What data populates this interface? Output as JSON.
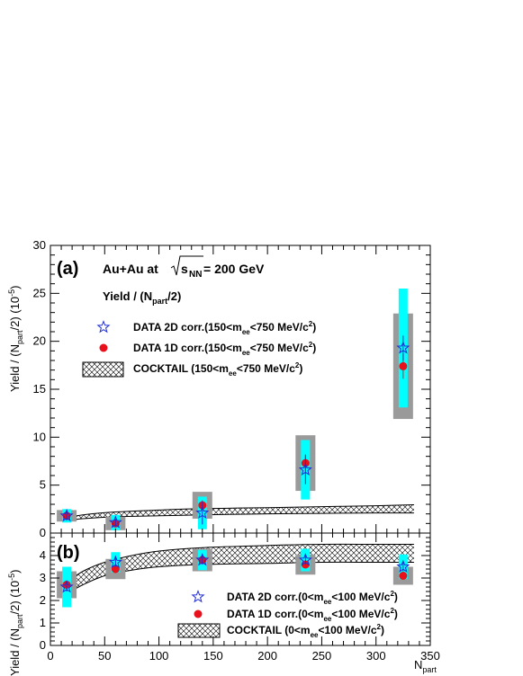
{
  "chart_data": [
    {
      "panel": "(a)",
      "type": "scatter",
      "title": "Au+Au at √sNN = 200 GeV",
      "title_parts": {
        "prefix": "Au+Au at ",
        "root": "s",
        "root_sub": "NN",
        "suffix": " = 200 GeV"
      },
      "subtitle": "Yield / (Npart/2)",
      "subtitle_parts": {
        "a": "Yield / (N",
        "sub": "part",
        "b": "/2)"
      },
      "ylabel": "Yield / (Npart/2) (10-5)",
      "ylim": [
        0,
        30
      ],
      "yticks": [
        0,
        5,
        10,
        15,
        20,
        25,
        30
      ],
      "x": [
        15,
        60,
        140,
        235,
        325
      ],
      "series": [
        {
          "name": "DATA 2D corr.(150<mee<750 MeV/c2)",
          "legend_parts": {
            "a": "DATA 2D corr.(150<m",
            "sub": "ee",
            "b": "<750 MeV/c",
            "sup": "2",
            "c": ")"
          },
          "marker": "open-star",
          "color": "#1f2bd6",
          "values": [
            1.8,
            1.1,
            2.1,
            6.6,
            19.3
          ],
          "stat_err": [
            0.5,
            0.4,
            1.2,
            1.5,
            1.3
          ],
          "sys_err": [
            0.7,
            0.8,
            1.7,
            3.1,
            6.2
          ]
        },
        {
          "name": "DATA 1D corr.(150<mee<750 MeV/c2)",
          "legend_parts": {
            "a": "DATA 1D corr.(150<m",
            "sub": "ee",
            "b": "<750 MeV/c",
            "sup": "2",
            "c": ")"
          },
          "marker": "filled-circle",
          "color": "#e8101a",
          "values": [
            1.8,
            1.0,
            2.9,
            7.3,
            17.4
          ],
          "stat_err": [
            0.2,
            0.2,
            0.5,
            0.9,
            1.3
          ],
          "sys_err": [
            0.6,
            0.7,
            1.4,
            2.9,
            5.5
          ]
        }
      ],
      "cocktail": {
        "name": "COCKTAIL (150<mee<750 MeV/c2)",
        "legend_parts": {
          "a": "COCKTAIL (150<m",
          "sub": "ee",
          "b": "<750 MeV/c",
          "sup": "2",
          "c": ")"
        },
        "x": [
          15,
          30,
          60,
          100,
          140,
          200,
          250,
          300,
          335
        ],
        "low": [
          1.3,
          1.5,
          1.7,
          1.8,
          1.9,
          2.0,
          2.05,
          2.1,
          2.1
        ],
        "high": [
          1.6,
          1.9,
          2.2,
          2.4,
          2.55,
          2.65,
          2.75,
          2.85,
          2.95
        ]
      }
    },
    {
      "panel": "(b)",
      "type": "scatter",
      "ylabel": "Yield / (Npart/2) (10-5)",
      "ylim": [
        0,
        5
      ],
      "yticks": [
        0,
        1,
        2,
        3,
        4
      ],
      "xlabel": "Npart",
      "xlim": [
        0,
        350
      ],
      "xticks": [
        0,
        50,
        100,
        150,
        200,
        250,
        300,
        350
      ],
      "x": [
        15,
        60,
        140,
        235,
        325
      ],
      "series": [
        {
          "name": "DATA 2D corr.(0<mee<100 MeV/c2)",
          "legend_parts": {
            "a": "DATA 2D corr.(0<m",
            "sub": "ee",
            "b": "<100 MeV/c",
            "sup": "2",
            "c": ")"
          },
          "marker": "open-star",
          "color": "#1f2bd6",
          "values": [
            2.6,
            3.7,
            3.8,
            3.8,
            3.5
          ],
          "stat_err": [
            0.2,
            0.2,
            0.2,
            0.2,
            0.2
          ],
          "sys_err": [
            0.9,
            0.45,
            0.45,
            0.5,
            0.55
          ]
        },
        {
          "name": "DATA 1D corr.(0<mee<100 MeV/c2)",
          "legend_parts": {
            "a": "DATA 1D corr.(0<m",
            "sub": "ee",
            "b": "<100 MeV/c",
            "sup": "2",
            "c": ")"
          },
          "marker": "filled-circle",
          "color": "#e8101a",
          "values": [
            2.7,
            3.4,
            3.8,
            3.6,
            3.1
          ],
          "stat_err": [
            0.1,
            0.1,
            0.1,
            0.1,
            0.1
          ],
          "sys_err": [
            0.6,
            0.45,
            0.5,
            0.45,
            0.4
          ]
        }
      ],
      "cocktail": {
        "name": "COCKTAIL (0<mee<100 MeV/c2)",
        "legend_parts": {
          "a": "COCKTAIL (0<m",
          "sub": "ee",
          "b": "<100 MeV/c",
          "sup": "2",
          "c": ")"
        },
        "x": [
          15,
          30,
          50,
          75,
          100,
          140,
          200,
          250,
          300,
          335
        ],
        "low": [
          2.3,
          2.7,
          3.1,
          3.35,
          3.5,
          3.6,
          3.65,
          3.7,
          3.7,
          3.7
        ],
        "high": [
          2.8,
          3.3,
          3.7,
          4.0,
          4.2,
          4.35,
          4.45,
          4.5,
          4.5,
          4.5
        ]
      }
    }
  ],
  "y_axis_title_parts": {
    "a": "Yield / (N",
    "sub": "part",
    "b": "/2) (10",
    "sup": "-5",
    "c": ")"
  },
  "x_axis_title_parts": {
    "a": "N",
    "sub": "part"
  },
  "colors": {
    "stat_band": "#00ffff",
    "sys_band": "#9a9a9a",
    "star": "#1f2bd6",
    "dot": "#e8101a"
  }
}
